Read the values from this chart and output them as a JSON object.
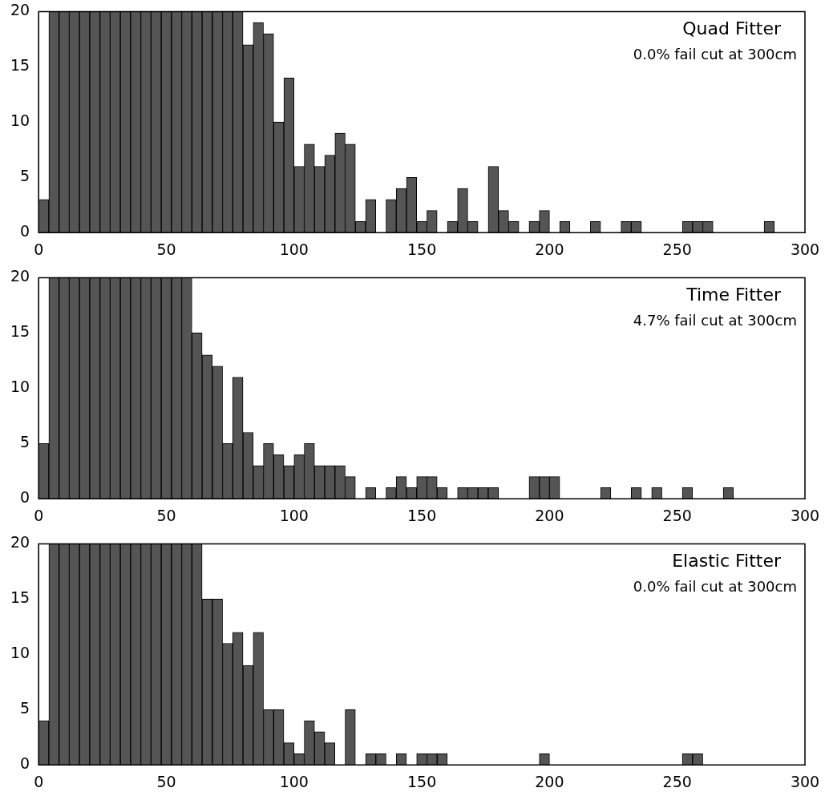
{
  "chart_data": [
    {
      "type": "histogram",
      "title": "Quad Fitter",
      "subtitle": "0.0% fail cut at 300cm",
      "color": "#555555",
      "bins": [
        0,
        4,
        8,
        12,
        16,
        20,
        24,
        28,
        32,
        36,
        40,
        44,
        48,
        52,
        56,
        60,
        64,
        68,
        72,
        76,
        80,
        84,
        88,
        92,
        96,
        100,
        104,
        108,
        112,
        116,
        120,
        124,
        128,
        132,
        136,
        140,
        144,
        148,
        152,
        156,
        160,
        164,
        168,
        172,
        176,
        180,
        184,
        188,
        192,
        196,
        200,
        204,
        208,
        212,
        216,
        220,
        224,
        228,
        232,
        236,
        240,
        244,
        248,
        252,
        256,
        260,
        264,
        268,
        272,
        276,
        280,
        284,
        288,
        292,
        296,
        300
      ],
      "values": [
        3,
        20,
        20,
        20,
        20,
        20,
        20,
        20,
        20,
        20,
        20,
        20,
        20,
        20,
        20,
        20,
        20,
        20,
        20,
        20,
        17,
        19,
        18,
        10,
        14,
        6,
        8,
        6,
        7,
        9,
        8,
        1,
        3,
        0,
        3,
        4,
        5,
        1,
        2,
        0,
        1,
        4,
        1,
        0,
        6,
        2,
        1,
        0,
        1,
        2,
        0,
        1,
        0,
        0,
        1,
        0,
        0,
        1,
        1,
        0,
        0,
        0,
        0,
        1,
        1,
        1,
        0,
        0,
        0,
        0,
        0,
        1,
        0,
        0,
        0
      ],
      "xlim": [
        0,
        300
      ],
      "xticks": [
        0,
        50,
        100,
        150,
        200,
        250,
        300
      ],
      "ylim": [
        0,
        20
      ],
      "yticks": [
        0,
        5,
        10,
        15,
        20
      ]
    },
    {
      "type": "histogram",
      "title": "Time Fitter",
      "subtitle": "4.7% fail cut at 300cm",
      "color": "#555555",
      "bins": [
        0,
        4,
        8,
        12,
        16,
        20,
        24,
        28,
        32,
        36,
        40,
        44,
        48,
        52,
        56,
        60,
        64,
        68,
        72,
        76,
        80,
        84,
        88,
        92,
        96,
        100,
        104,
        108,
        112,
        116,
        120,
        124,
        128,
        132,
        136,
        140,
        144,
        148,
        152,
        156,
        160,
        164,
        168,
        172,
        176,
        180,
        184,
        188,
        192,
        196,
        200,
        204,
        208,
        212,
        216,
        220,
        224,
        228,
        232,
        236,
        240,
        244,
        248,
        252,
        256,
        260,
        264,
        268,
        272,
        276,
        280,
        284,
        288,
        292,
        296,
        300
      ],
      "values": [
        5,
        20,
        20,
        20,
        20,
        20,
        20,
        20,
        20,
        20,
        20,
        20,
        20,
        20,
        20,
        15,
        13,
        12,
        5,
        11,
        6,
        3,
        5,
        4,
        3,
        4,
        5,
        3,
        3,
        3,
        2,
        0,
        1,
        0,
        1,
        2,
        1,
        2,
        2,
        1,
        0,
        1,
        1,
        1,
        1,
        0,
        0,
        0,
        2,
        2,
        2,
        0,
        0,
        0,
        0,
        1,
        0,
        0,
        1,
        0,
        1,
        0,
        0,
        1,
        0,
        0,
        0,
        1,
        0,
        0,
        0,
        0,
        0,
        0,
        0
      ],
      "xlim": [
        0,
        300
      ],
      "xticks": [
        0,
        50,
        100,
        150,
        200,
        250,
        300
      ],
      "ylim": [
        0,
        20
      ],
      "yticks": [
        0,
        5,
        10,
        15,
        20
      ]
    },
    {
      "type": "histogram",
      "title": "Elastic Fitter",
      "subtitle": "0.0% fail cut at 300cm",
      "color": "#555555",
      "bins": [
        0,
        4,
        8,
        12,
        16,
        20,
        24,
        28,
        32,
        36,
        40,
        44,
        48,
        52,
        56,
        60,
        64,
        68,
        72,
        76,
        80,
        84,
        88,
        92,
        96,
        100,
        104,
        108,
        112,
        116,
        120,
        124,
        128,
        132,
        136,
        140,
        144,
        148,
        152,
        156,
        160,
        164,
        168,
        172,
        176,
        180,
        184,
        188,
        192,
        196,
        200,
        204,
        208,
        212,
        216,
        220,
        224,
        228,
        232,
        236,
        240,
        244,
        248,
        252,
        256,
        260,
        264,
        268,
        272,
        276,
        280,
        284,
        288,
        292,
        296,
        300
      ],
      "values": [
        4,
        20,
        20,
        20,
        20,
        20,
        20,
        20,
        20,
        20,
        20,
        20,
        20,
        20,
        20,
        20,
        15,
        15,
        11,
        12,
        9,
        12,
        5,
        5,
        2,
        1,
        4,
        3,
        2,
        0,
        5,
        0,
        1,
        1,
        0,
        1,
        0,
        1,
        1,
        1,
        0,
        0,
        0,
        0,
        0,
        0,
        0,
        0,
        0,
        1,
        0,
        0,
        0,
        0,
        0,
        0,
        0,
        0,
        0,
        0,
        0,
        0,
        0,
        1,
        1,
        0,
        0,
        0,
        0,
        0,
        0,
        0,
        0,
        0,
        0
      ],
      "xlim": [
        0,
        300
      ],
      "xticks": [
        0,
        50,
        100,
        150,
        200,
        250,
        300
      ],
      "ylim": [
        0,
        20
      ],
      "yticks": [
        0,
        5,
        10,
        15,
        20
      ]
    }
  ]
}
